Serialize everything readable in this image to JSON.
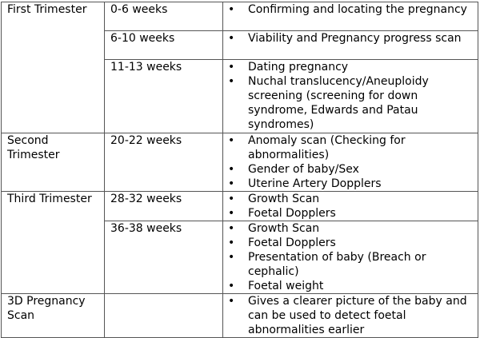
{
  "rows": [
    {
      "stage": "First Trimester",
      "weeks": "0-6 weeks",
      "items": [
        "Confirming and locating the pregnancy"
      ]
    },
    {
      "stage": "",
      "weeks": "6-10 weeks",
      "items": [
        "Viability and Pregnancy progress scan"
      ]
    },
    {
      "stage": "",
      "weeks": "11-13 weeks",
      "items": [
        "Dating pregnancy",
        "Nuchal translucency/Aneuploidy screening (screening for down syndrome, Edwards and Patau syndromes)"
      ]
    },
    {
      "stage": "Second Trimester",
      "weeks": "20-22 weeks",
      "items": [
        "Anomaly scan (Checking for abnormalities)",
        "Gender of baby/Sex",
        "Uterine Artery Dopplers"
      ]
    },
    {
      "stage": "Third Trimester",
      "weeks": "28-32 weeks",
      "items": [
        "Growth Scan",
        "Foetal Dopplers"
      ]
    },
    {
      "stage": "",
      "weeks": "36-38 weeks",
      "items": [
        "Growth Scan",
        "Foetal Dopplers",
        "Presentation of baby (Breach or cephalic)",
        "Foetal weight"
      ]
    },
    {
      "stage": "3D Pregnancy Scan",
      "weeks": "",
      "items": [
        "Gives a clearer picture of the baby and can be used to detect foetal abnormalities earlier"
      ]
    }
  ]
}
